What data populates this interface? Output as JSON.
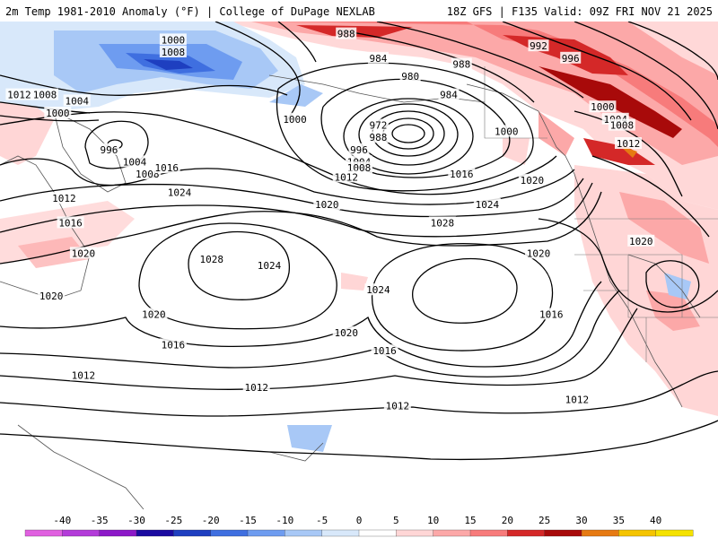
{
  "header": {
    "left_title": "2m Temp 1981-2010 Anomaly (°F) | College of DuPage NEXLAB",
    "right_title": "18Z GFS | F135 Valid: 09Z FRI NOV 21 2025"
  },
  "isobar_labels": [
    {
      "text": "988",
      "lon": -168,
      "lat": 62
    },
    {
      "text": "984",
      "lon": -163,
      "lat": 58
    },
    {
      "text": "988",
      "lon": -150,
      "lat": 57
    },
    {
      "text": "992",
      "lon": -138,
      "lat": 60
    },
    {
      "text": "996",
      "lon": -133,
      "lat": 58
    },
    {
      "text": "1000",
      "lon": -195,
      "lat": 61
    },
    {
      "text": "1008",
      "lon": -195,
      "lat": 59
    },
    {
      "text": "1012",
      "lon": -219,
      "lat": 52
    },
    {
      "text": "1008",
      "lon": -215,
      "lat": 52
    },
    {
      "text": "1004",
      "lon": -210,
      "lat": 51
    },
    {
      "text": "1000",
      "lon": -213,
      "lat": 49
    },
    {
      "text": "980",
      "lon": -158,
      "lat": 55
    },
    {
      "text": "984",
      "lon": -152,
      "lat": 52
    },
    {
      "text": "1000",
      "lon": -176,
      "lat": 48
    },
    {
      "text": "972",
      "lon": -163,
      "lat": 47
    },
    {
      "text": "988",
      "lon": -163,
      "lat": 45
    },
    {
      "text": "996",
      "lon": -166,
      "lat": 43
    },
    {
      "text": "1004",
      "lon": -166,
      "lat": 41
    },
    {
      "text": "1008",
      "lon": -166,
      "lat": 40
    },
    {
      "text": "1012",
      "lon": -168,
      "lat": 38.5
    },
    {
      "text": "1000",
      "lon": -143,
      "lat": 46
    },
    {
      "text": "1016",
      "lon": -150,
      "lat": 39
    },
    {
      "text": "1020",
      "lon": -139,
      "lat": 38
    },
    {
      "text": "1024",
      "lon": -146,
      "lat": 34
    },
    {
      "text": "1028",
      "lon": -153,
      "lat": 31
    },
    {
      "text": "1000",
      "lon": -128,
      "lat": 50
    },
    {
      "text": "1004",
      "lon": -126,
      "lat": 48
    },
    {
      "text": "1008",
      "lon": -125,
      "lat": 47
    },
    {
      "text": "1012",
      "lon": -124,
      "lat": 44
    },
    {
      "text": "996",
      "lon": -205,
      "lat": 43
    },
    {
      "text": "1004",
      "lon": -201,
      "lat": 41
    },
    {
      "text": "1008",
      "lon": -199,
      "lat": 39
    },
    {
      "text": "1016",
      "lon": -196,
      "lat": 40
    },
    {
      "text": "1024",
      "lon": -194,
      "lat": 36
    },
    {
      "text": "1012",
      "lon": -212,
      "lat": 35
    },
    {
      "text": "1016",
      "lon": -211,
      "lat": 31
    },
    {
      "text": "1020",
      "lon": -209,
      "lat": 26
    },
    {
      "text": "1020",
      "lon": -171,
      "lat": 34
    },
    {
      "text": "1028",
      "lon": -189,
      "lat": 25
    },
    {
      "text": "1024",
      "lon": -180,
      "lat": 24
    },
    {
      "text": "1020",
      "lon": -138,
      "lat": 26
    },
    {
      "text": "1020",
      "lon": -122,
      "lat": 28
    },
    {
      "text": "1024",
      "lon": -163,
      "lat": 20
    },
    {
      "text": "1016",
      "lon": -136,
      "lat": 16
    },
    {
      "text": "1020",
      "lon": -214,
      "lat": 19
    },
    {
      "text": "1020",
      "lon": -198,
      "lat": 16
    },
    {
      "text": "1020",
      "lon": -168,
      "lat": 13
    },
    {
      "text": "1016",
      "lon": -195,
      "lat": 11
    },
    {
      "text": "1016",
      "lon": -162,
      "lat": 10
    },
    {
      "text": "1012",
      "lon": -209,
      "lat": 6
    },
    {
      "text": "1012",
      "lon": -182,
      "lat": 4
    },
    {
      "text": "1012",
      "lon": -160,
      "lat": 1
    },
    {
      "text": "1012",
      "lon": -132,
      "lat": 2
    }
  ],
  "colorbar": {
    "ticks": [
      "-40",
      "-35",
      "-30",
      "-25",
      "-20",
      "-15",
      "-10",
      "-5",
      "0",
      "5",
      "10",
      "15",
      "20",
      "25",
      "30",
      "35",
      "40"
    ],
    "colors": [
      "#e060e0",
      "#b33bd9",
      "#8c18c8",
      "#1a0aa0",
      "#1e3fc0",
      "#3f6fe0",
      "#6e9cf0",
      "#a8c8f6",
      "#d8e8fa",
      "#ffffff",
      "#ffd6d6",
      "#fca8a8",
      "#f77b7b",
      "#d42828",
      "#a80a0a",
      "#e67a12",
      "#f5c400",
      "#f5e200"
    ]
  }
}
